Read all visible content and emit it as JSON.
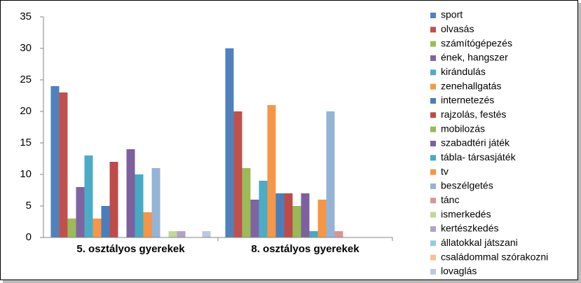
{
  "chart_data": {
    "type": "bar",
    "categories": [
      "5. osztályos gyerekek",
      "8. osztályos gyerekek"
    ],
    "series": [
      {
        "name": "sport",
        "color": "#4f81bd",
        "values": [
          24,
          30
        ]
      },
      {
        "name": "olvasás",
        "color": "#c0504d",
        "values": [
          23,
          20
        ]
      },
      {
        "name": "számítógépezés",
        "color": "#9bbb59",
        "values": [
          3,
          11
        ]
      },
      {
        "name": "ének, hangszer",
        "color": "#8064a2",
        "values": [
          8,
          6
        ]
      },
      {
        "name": "kirándulás",
        "color": "#4bacc6",
        "values": [
          13,
          9
        ]
      },
      {
        "name": "zenehallgatás",
        "color": "#f79646",
        "values": [
          3,
          21
        ]
      },
      {
        "name": "internetezés",
        "color": "#4a7ebb",
        "values": [
          5,
          7
        ]
      },
      {
        "name": "rajzolás, festés",
        "color": "#be4b48",
        "values": [
          12,
          7
        ]
      },
      {
        "name": "mobilozás",
        "color": "#98b954",
        "values": [
          0,
          5
        ]
      },
      {
        "name": "szabadtéri játék",
        "color": "#7d60a0",
        "values": [
          14,
          7
        ]
      },
      {
        "name": "tábla- társasjáték",
        "color": "#46aac4",
        "values": [
          10,
          1
        ]
      },
      {
        "name": "tv",
        "color": "#f69544",
        "values": [
          4,
          6
        ]
      },
      {
        "name": "beszélgetés",
        "color": "#95b3d7",
        "values": [
          11,
          20
        ]
      },
      {
        "name": "tánc",
        "color": "#d99694",
        "values": [
          0,
          1
        ]
      },
      {
        "name": "ismerkedés",
        "color": "#c3d69b",
        "values": [
          1,
          0
        ]
      },
      {
        "name": "kertészkedés",
        "color": "#b2a2c7",
        "values": [
          1,
          0
        ]
      },
      {
        "name": "állatokkal játszani",
        "color": "#93cddd",
        "values": [
          0,
          0
        ]
      },
      {
        "name": "családommal szórakozni",
        "color": "#fac090",
        "values": [
          0,
          0
        ]
      },
      {
        "name": "lovaglás",
        "color": "#b9c9e3",
        "values": [
          1,
          0
        ]
      }
    ],
    "ylim": [
      0,
      35
    ],
    "yticks": [
      0,
      5,
      10,
      15,
      20,
      25,
      30,
      35
    ],
    "grid": false,
    "legend": "right"
  }
}
